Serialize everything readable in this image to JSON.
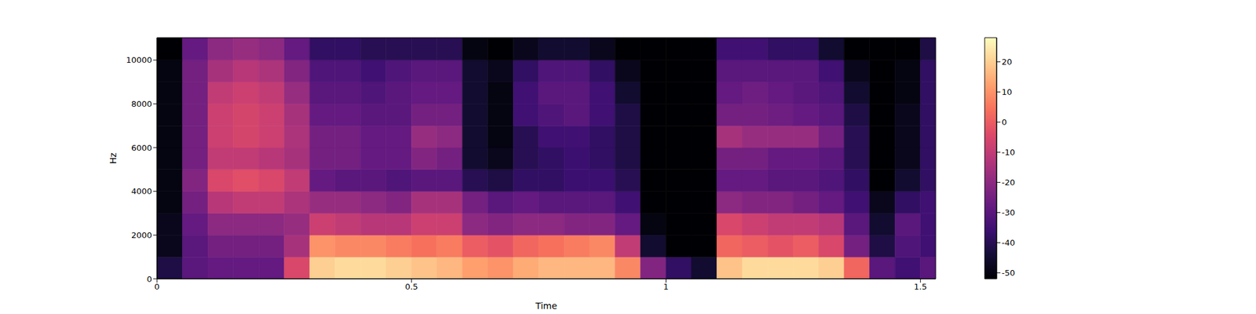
{
  "chart_data": {
    "type": "heatmap",
    "xlabel": "Time",
    "ylabel": "Hz",
    "xlim": [
      0,
      1.53
    ],
    "xticks": [
      0,
      0.5,
      1,
      1.5
    ],
    "ylim": [
      0,
      11025
    ],
    "yticks": [
      0,
      2000,
      4000,
      6000,
      8000,
      10000
    ],
    "x_edges": [
      0,
      0.05,
      0.1,
      0.15,
      0.2,
      0.25,
      0.3,
      0.35,
      0.4,
      0.45,
      0.5,
      0.55,
      0.6,
      0.65,
      0.7,
      0.75,
      0.8,
      0.85,
      0.9,
      0.95,
      1.0,
      1.05,
      1.1,
      1.15,
      1.2,
      1.25,
      1.3,
      1.35,
      1.4,
      1.45,
      1.5,
      1.53
    ],
    "y_edges": [
      0,
      1000,
      2000,
      3000,
      4000,
      5000,
      6000,
      7000,
      8000,
      9000,
      10000,
      11025
    ],
    "cells": [
      [
        -42,
        -30,
        -28,
        -28,
        -28,
        -5,
        20,
        22,
        22,
        20,
        18,
        16,
        12,
        10,
        14,
        16,
        16,
        16,
        8,
        -22,
        -38,
        -45,
        18,
        22,
        22,
        22,
        20,
        2,
        -30,
        -35,
        -30
      ],
      [
        -48,
        -30,
        -25,
        -25,
        -25,
        -15,
        10,
        8,
        8,
        6,
        4,
        6,
        0,
        -2,
        2,
        4,
        6,
        8,
        -10,
        -45,
        -52,
        -52,
        2,
        0,
        -2,
        0,
        -5,
        -25,
        -42,
        -32,
        -35
      ],
      [
        -48,
        -28,
        -20,
        -20,
        -20,
        -18,
        -8,
        -10,
        -12,
        -12,
        -8,
        -8,
        -20,
        -22,
        -20,
        -20,
        -22,
        -22,
        -28,
        -50,
        -52,
        -52,
        -5,
        -8,
        -10,
        -10,
        -12,
        -30,
        -45,
        -30,
        -35
      ],
      [
        -50,
        -25,
        -12,
        -10,
        -10,
        -14,
        -18,
        -18,
        -20,
        -22,
        -15,
        -15,
        -25,
        -30,
        -28,
        -30,
        -30,
        -30,
        -35,
        -52,
        -52,
        -52,
        -20,
        -22,
        -22,
        -25,
        -28,
        -35,
        -48,
        -38,
        -35
      ],
      [
        -50,
        -22,
        -5,
        -3,
        -5,
        -10,
        -28,
        -30,
        -30,
        -32,
        -30,
        -30,
        -40,
        -42,
        -38,
        -38,
        -36,
        -36,
        -40,
        -52,
        -52,
        -52,
        -28,
        -28,
        -30,
        -30,
        -32,
        -38,
        -52,
        -45,
        -38
      ],
      [
        -50,
        -25,
        -10,
        -10,
        -12,
        -15,
        -25,
        -25,
        -28,
        -28,
        -22,
        -25,
        -45,
        -48,
        -40,
        -38,
        -36,
        -38,
        -42,
        -52,
        -52,
        -52,
        -25,
        -25,
        -28,
        -28,
        -30,
        -40,
        -52,
        -48,
        -38
      ],
      [
        -50,
        -25,
        -8,
        -6,
        -8,
        -14,
        -25,
        -25,
        -28,
        -28,
        -18,
        -20,
        -45,
        -50,
        -40,
        -35,
        -35,
        -38,
        -42,
        -52,
        -52,
        -52,
        -15,
        -18,
        -18,
        -18,
        -25,
        -40,
        -52,
        -48,
        -38
      ],
      [
        -50,
        -25,
        -8,
        -6,
        -8,
        -15,
        -28,
        -28,
        -30,
        -30,
        -25,
        -25,
        -45,
        -50,
        -35,
        -32,
        -30,
        -35,
        -42,
        -52,
        -52,
        -52,
        -25,
        -25,
        -26,
        -28,
        -30,
        -42,
        -52,
        -48,
        -38
      ],
      [
        -50,
        -25,
        -10,
        -8,
        -10,
        -18,
        -30,
        -30,
        -32,
        -30,
        -28,
        -28,
        -45,
        -50,
        -35,
        -30,
        -30,
        -35,
        -45,
        -52,
        -52,
        -52,
        -28,
        -26,
        -28,
        -30,
        -32,
        -45,
        -52,
        -50,
        -38
      ],
      [
        -50,
        -25,
        -15,
        -12,
        -14,
        -22,
        -32,
        -32,
        -35,
        -32,
        -30,
        -30,
        -45,
        -48,
        -38,
        -32,
        -32,
        -38,
        -48,
        -52,
        -52,
        -52,
        -30,
        -30,
        -30,
        -30,
        -35,
        -48,
        -52,
        -50,
        -38
      ],
      [
        -52,
        -28,
        -20,
        -18,
        -20,
        -28,
        -38,
        -38,
        -40,
        -40,
        -40,
        -40,
        -50,
        -52,
        -48,
        -45,
        -45,
        -48,
        -52,
        -52,
        -52,
        -52,
        -35,
        -35,
        -38,
        -38,
        -45,
        -52,
        -52,
        -52,
        -42
      ]
    ],
    "colorbar_range": [
      -52,
      28
    ],
    "colorbar_ticks": [
      -50,
      -40,
      -30,
      -20,
      -10,
      0,
      10,
      20
    ]
  }
}
